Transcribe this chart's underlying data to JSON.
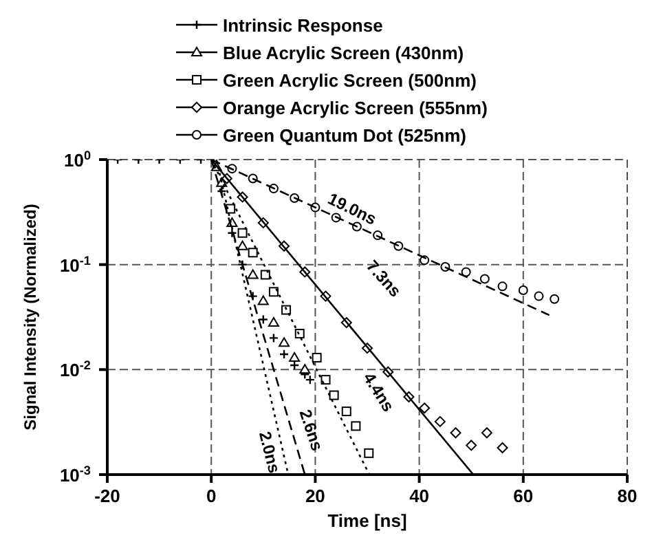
{
  "chart_data": {
    "type": "scatter",
    "xlabel": "Time [ns]",
    "ylabel": "Signal Intensity (Normalized)",
    "xlim": [
      -20,
      80
    ],
    "xticks": [
      -20,
      0,
      20,
      40,
      60,
      80
    ],
    "ylim": [
      0.001,
      1
    ],
    "yticks": [
      {
        "value": 0.001,
        "label": "10$^{-3}$"
      },
      {
        "value": 0.01,
        "label": "10$^{-2}$"
      },
      {
        "value": 0.1,
        "label": "10$^{-1}$"
      },
      {
        "value": 1,
        "label": "10$^{0}$"
      }
    ],
    "log": "y",
    "grid": true,
    "legend": "top",
    "series": [
      {
        "name": "Intrinsic Response",
        "color": "#000000",
        "marker": "cross",
        "x": [
          -18,
          -14,
          -10,
          -6,
          -2,
          2,
          4,
          6,
          8,
          10,
          12,
          14,
          16,
          18,
          19
        ],
        "values": [
          1,
          1,
          1,
          1,
          1,
          0.5,
          0.2,
          0.1,
          0.05,
          0.03,
          0.02,
          0.014,
          0.011,
          0.009,
          0.008
        ]
      },
      {
        "name": "Blue Acrylic Screen (430nm)",
        "color": "#000000",
        "marker": "triangle",
        "x": [
          1,
          2,
          4,
          6,
          8,
          10,
          12,
          14,
          16,
          18
        ],
        "values": [
          0.85,
          0.6,
          0.25,
          0.15,
          0.08,
          0.045,
          0.028,
          0.018,
          0.013,
          0.01
        ]
      },
      {
        "name": "Green Acrylic Screen (500nm)",
        "color": "#000000",
        "marker": "square",
        "x": [
          3.7,
          6,
          8,
          10.4,
          12,
          14.4,
          17,
          20.3,
          22,
          23.6,
          26,
          27.8,
          30.3
        ],
        "values": [
          0.34,
          0.2,
          0.13,
          0.08,
          0.055,
          0.037,
          0.022,
          0.013,
          0.008,
          0.0057,
          0.004,
          0.0029,
          0.0016
        ]
      },
      {
        "name": "Orange Acrylic Screen (555nm)",
        "color": "#000000",
        "marker": "diamond",
        "x": [
          3,
          6,
          10,
          14,
          18,
          22,
          26,
          30,
          34,
          38,
          41,
          44,
          47,
          50,
          53,
          56
        ],
        "values": [
          0.66,
          0.44,
          0.25,
          0.15,
          0.085,
          0.05,
          0.028,
          0.016,
          0.0095,
          0.0055,
          0.0043,
          0.0032,
          0.0025,
          0.0019,
          0.0025,
          0.0018
        ]
      },
      {
        "name": "Green Quantum Dot (525nm)",
        "color": "#000000",
        "marker": "circle",
        "x": [
          4,
          8,
          12,
          16,
          20,
          24,
          28,
          32,
          36,
          41,
          45,
          49,
          52.6,
          56,
          60,
          63,
          66
        ],
        "values": [
          0.82,
          0.66,
          0.53,
          0.43,
          0.35,
          0.28,
          0.23,
          0.19,
          0.15,
          0.11,
          0.095,
          0.085,
          0.073,
          0.062,
          0.057,
          0.05,
          0.047
        ]
      },
      {
        "type": "line",
        "color": "#000000",
        "line_style": "dotted",
        "x": [
          1,
          14.8
        ],
        "values": [
          1,
          0.001
        ]
      },
      {
        "type": "line",
        "color": "#000000",
        "line_style": "dashed",
        "x": [
          0,
          18
        ],
        "values": [
          1,
          0.001
        ]
      },
      {
        "type": "line",
        "color": "#000000",
        "line_style": "dotted",
        "x": [
          0,
          30.4
        ],
        "values": [
          1,
          0.001
        ]
      },
      {
        "type": "line",
        "color": "#000000",
        "line_style": "solid",
        "x": [
          0,
          50.4
        ],
        "values": [
          1,
          0.001
        ]
      },
      {
        "type": "line",
        "color": "#000000",
        "line_style": "dashed",
        "x": [
          0,
          65
        ],
        "values": [
          1,
          0.033
        ]
      }
    ],
    "annotations": [
      "19.0ns",
      "7.3ns",
      "4.4ns",
      "2.6ns",
      "2.0ns"
    ]
  }
}
